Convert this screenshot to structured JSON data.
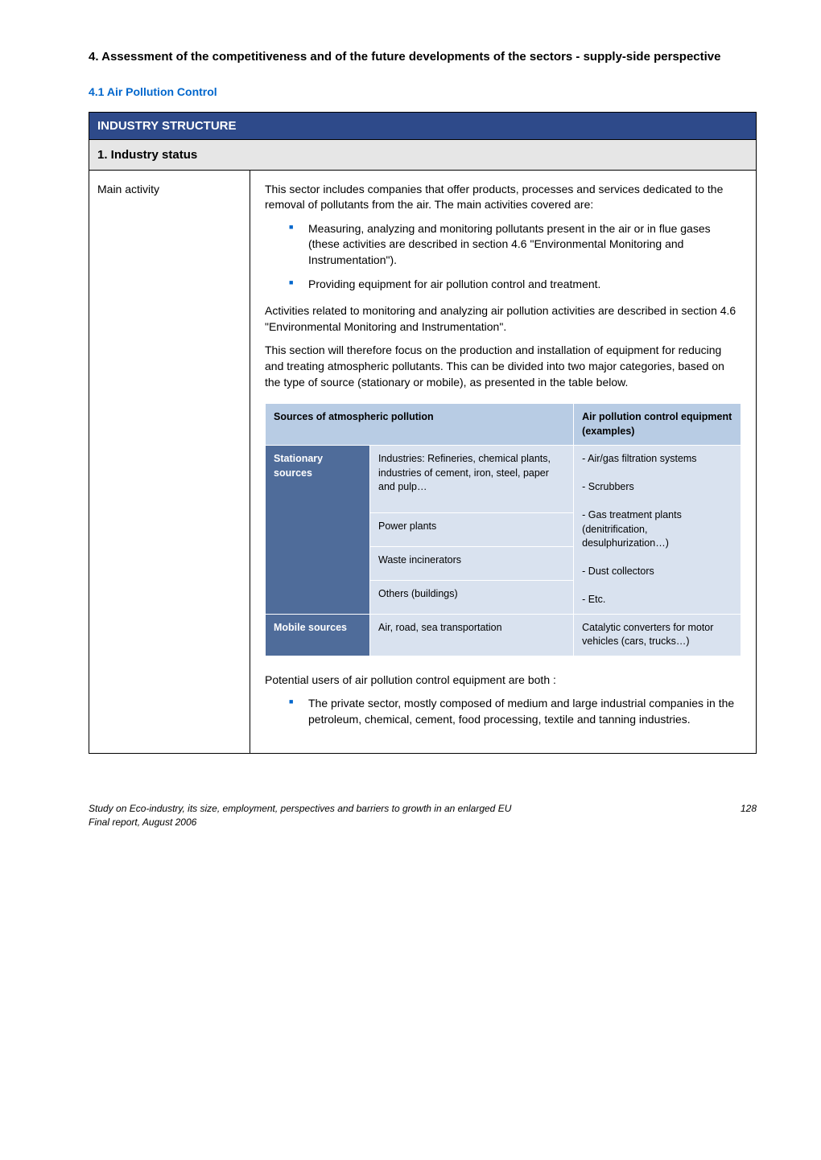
{
  "heading": "4. Assessment of the competitiveness and of the future developments of the sectors - supply-side perspective",
  "subsection": "4.1    Air Pollution Control",
  "banner": "INDUSTRY STRUCTURE",
  "status_row": "1. Industry status",
  "main_activity_label": "Main activity",
  "para1": "This sector includes companies that offer products, processes and services dedicated to the removal of pollutants from the air. The main activities covered are:",
  "bullets1": [
    "Measuring, analyzing and monitoring pollutants present in the air or in flue gases (these activities are described in section 4.6 \"Environmental Monitoring and Instrumentation\").",
    "Providing equipment for air pollution control and treatment."
  ],
  "para2": "Activities related to monitoring and analyzing air pollution activities are described in section 4.6 \"Environmental Monitoring and Instrumentation\".",
  "para3": "This section will therefore focus on the production and installation of equipment for reducing and treating atmospheric pollutants. This can be divided into two major categories, based on the type of source (stationary or mobile), as presented in the table below.",
  "inner_table": {
    "head_left": "Sources of atmospheric pollution",
    "head_right": "Air pollution control equipment (examples)",
    "stationary_label": "Stationary sources",
    "stationary_rows": [
      "Industries: Refineries, chemical plants, industries of cement, iron, steel, paper and pulp…",
      "Power plants",
      "Waste incinerators",
      "Others (buildings)"
    ],
    "stationary_right": "- Air/gas filtration systems\n\n- Scrubbers\n\n- Gas treatment plants (denitrification, desulphurization…)\n\n- Dust collectors\n\n- Etc.",
    "mobile_label": "Mobile sources",
    "mobile_mid": "Air, road, sea transportation",
    "mobile_right": "Catalytic converters for motor vehicles (cars, trucks…)"
  },
  "para4": "Potential users of air pollution control equipment are both :",
  "bullets2": [
    "The private sector, mostly composed of medium and large industrial companies in the petroleum, chemical, cement, food processing, textile and tanning industries."
  ],
  "footer_left": "Study on Eco-industry, its size, employment, perspectives and barriers to growth in an enlarged EU",
  "footer_left2": "Final report, August 2006",
  "footer_page": "128"
}
